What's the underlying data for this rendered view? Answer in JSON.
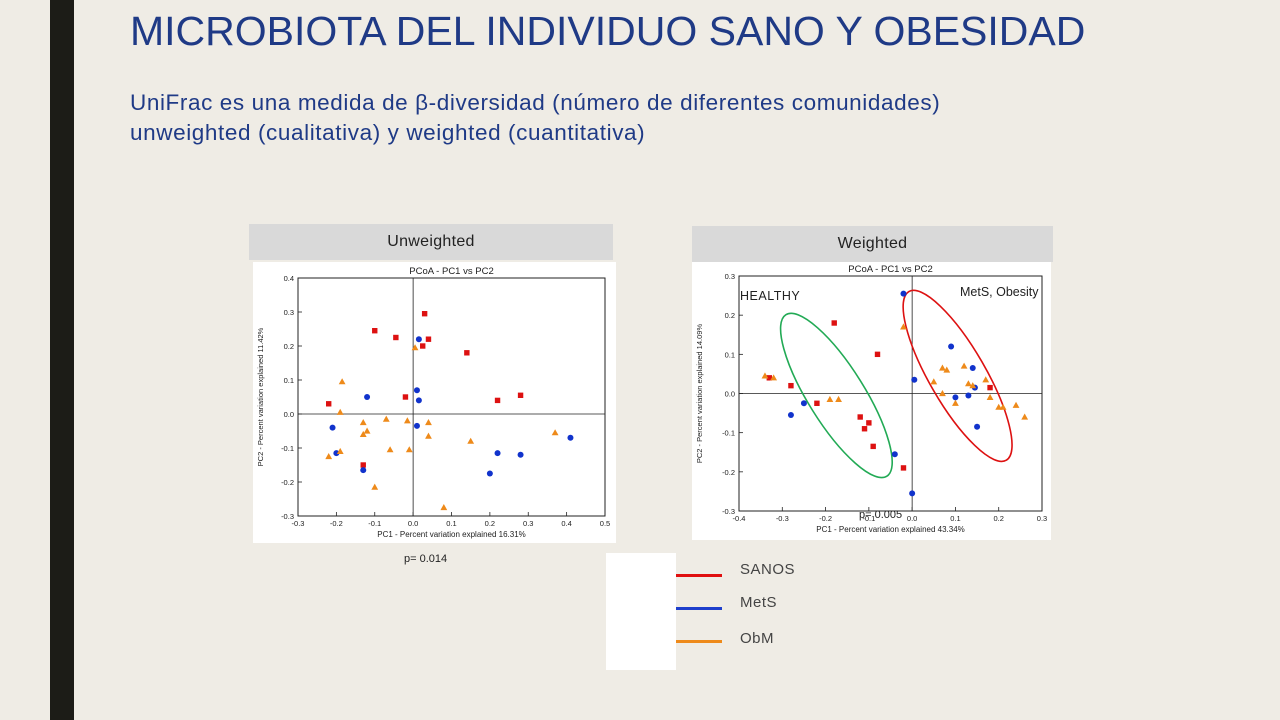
{
  "slide": {
    "title": "MICROBIOTA DEL INDIVIDUO SANO Y OBESIDAD",
    "subtitle_line1": "UniFrac es una medida de β-diversidad (número de diferentes comunidades)",
    "subtitle_line2": "unweighted (cualitativa) y weighted (cuantitativa)"
  },
  "colors": {
    "sanos": "#dd1111",
    "mets": "#1133cc",
    "obm": "#ee8a1a",
    "healthy_ellipse": "#22aa55",
    "mets_ellipse": "#dd1111"
  },
  "legend": {
    "items": [
      {
        "label": "SANOS",
        "color": "#e01010"
      },
      {
        "label": "MetS",
        "color": "#1e3fcc"
      },
      {
        "label": "ObM",
        "color": "#ee8a1a"
      }
    ]
  },
  "chart_data": [
    {
      "type": "scatter",
      "panel_label": "Unweighted",
      "title": "PCoA - PC1 vs PC2",
      "xlabel": "PC1 - Percent variation explained 16.31%",
      "ylabel": "PC2 - Percent variation explained 11.42%",
      "xlim": [
        -0.3,
        0.5
      ],
      "ylim": [
        -0.3,
        0.4
      ],
      "xticks": [
        -0.3,
        -0.2,
        -0.1,
        0.0,
        0.1,
        0.2,
        0.3,
        0.4,
        0.5
      ],
      "yticks": [
        -0.3,
        -0.2,
        -0.1,
        0.0,
        0.1,
        0.2,
        0.3,
        0.4
      ],
      "pvalue": "p= 0.014",
      "series": [
        {
          "name": "SANOS",
          "marker": "square",
          "points": [
            [
              -0.22,
              0.03
            ],
            [
              -0.1,
              0.245
            ],
            [
              -0.045,
              0.225
            ],
            [
              -0.02,
              0.05
            ],
            [
              0.03,
              0.295
            ],
            [
              0.025,
              0.2
            ],
            [
              0.04,
              0.22
            ],
            [
              0.14,
              0.18
            ],
            [
              0.22,
              0.04
            ],
            [
              0.28,
              0.055
            ],
            [
              -0.13,
              -0.15
            ]
          ]
        },
        {
          "name": "MetS",
          "marker": "circle",
          "points": [
            [
              -0.21,
              -0.04
            ],
            [
              -0.2,
              -0.115
            ],
            [
              -0.12,
              0.05
            ],
            [
              -0.13,
              -0.165
            ],
            [
              0.015,
              0.22
            ],
            [
              0.01,
              0.07
            ],
            [
              0.015,
              0.04
            ],
            [
              0.01,
              -0.035
            ],
            [
              0.2,
              -0.175
            ],
            [
              0.22,
              -0.115
            ],
            [
              0.28,
              -0.12
            ],
            [
              0.41,
              -0.07
            ]
          ]
        },
        {
          "name": "ObM",
          "marker": "triangle",
          "points": [
            [
              -0.22,
              -0.125
            ],
            [
              -0.185,
              0.095
            ],
            [
              -0.19,
              0.005
            ],
            [
              -0.19,
              -0.11
            ],
            [
              -0.13,
              -0.025
            ],
            [
              -0.13,
              -0.06
            ],
            [
              -0.12,
              -0.05
            ],
            [
              -0.1,
              -0.215
            ],
            [
              -0.07,
              -0.015
            ],
            [
              -0.06,
              -0.105
            ],
            [
              -0.015,
              -0.02
            ],
            [
              -0.01,
              -0.105
            ],
            [
              0.005,
              0.195
            ],
            [
              0.04,
              -0.025
            ],
            [
              0.04,
              -0.065
            ],
            [
              0.08,
              -0.275
            ],
            [
              0.15,
              -0.08
            ],
            [
              0.37,
              -0.055
            ]
          ]
        }
      ]
    },
    {
      "type": "scatter",
      "panel_label": "Weighted",
      "title": "PCoA - PC1 vs PC2",
      "xlabel": "PC1 - Percent variation explained 43.34%",
      "ylabel": "PC2 - Percent variation explained 14.09%",
      "xlim": [
        -0.4,
        0.3
      ],
      "ylim": [
        -0.3,
        0.3
      ],
      "xticks": [
        -0.4,
        -0.3,
        -0.2,
        -0.1,
        0.0,
        0.1,
        0.2,
        0.3
      ],
      "yticks": [
        -0.3,
        -0.2,
        -0.1,
        0.0,
        0.1,
        0.2,
        0.3
      ],
      "pvalue": "p= 0.005",
      "annotations": [
        {
          "text": "HEALTHY"
        },
        {
          "text": "MetS, Obesity"
        }
      ],
      "ellipses": [
        {
          "label": "HEALTHY",
          "center": [
            -0.175,
            -0.005
          ],
          "rx": 0.22,
          "ry": 0.065,
          "angle_deg": -58,
          "color": "#22aa55"
        },
        {
          "label": "MetS, Obesity",
          "center": [
            0.105,
            0.045
          ],
          "rx": 0.225,
          "ry": 0.065,
          "angle_deg": -60,
          "color": "#dd1111"
        }
      ],
      "series": [
        {
          "name": "SANOS",
          "marker": "square",
          "points": [
            [
              -0.33,
              0.04
            ],
            [
              -0.28,
              0.02
            ],
            [
              -0.22,
              -0.025
            ],
            [
              -0.18,
              0.18
            ],
            [
              -0.12,
              -0.06
            ],
            [
              -0.11,
              -0.09
            ],
            [
              -0.1,
              -0.075
            ],
            [
              -0.09,
              -0.135
            ],
            [
              -0.08,
              0.1
            ],
            [
              -0.02,
              -0.19
            ],
            [
              0.18,
              0.015
            ]
          ]
        },
        {
          "name": "MetS",
          "marker": "circle",
          "points": [
            [
              -0.28,
              -0.055
            ],
            [
              -0.25,
              -0.025
            ],
            [
              -0.04,
              -0.155
            ],
            [
              -0.02,
              0.255
            ],
            [
              0.0,
              -0.255
            ],
            [
              0.005,
              0.035
            ],
            [
              0.09,
              0.12
            ],
            [
              0.1,
              -0.01
            ],
            [
              0.13,
              -0.005
            ],
            [
              0.14,
              0.065
            ],
            [
              0.145,
              0.015
            ],
            [
              0.15,
              -0.085
            ]
          ]
        },
        {
          "name": "ObM",
          "marker": "triangle",
          "points": [
            [
              -0.34,
              0.045
            ],
            [
              -0.32,
              0.04
            ],
            [
              -0.19,
              -0.015
            ],
            [
              -0.17,
              -0.015
            ],
            [
              -0.02,
              0.17
            ],
            [
              0.05,
              0.03
            ],
            [
              0.07,
              0.065
            ],
            [
              0.08,
              0.06
            ],
            [
              0.07,
              0.0
            ],
            [
              0.1,
              -0.025
            ],
            [
              0.12,
              0.07
            ],
            [
              0.13,
              0.025
            ],
            [
              0.14,
              0.02
            ],
            [
              0.17,
              0.035
            ],
            [
              0.18,
              -0.01
            ],
            [
              0.2,
              -0.035
            ],
            [
              0.21,
              -0.035
            ],
            [
              0.24,
              -0.03
            ],
            [
              0.26,
              -0.06
            ]
          ]
        }
      ]
    }
  ]
}
